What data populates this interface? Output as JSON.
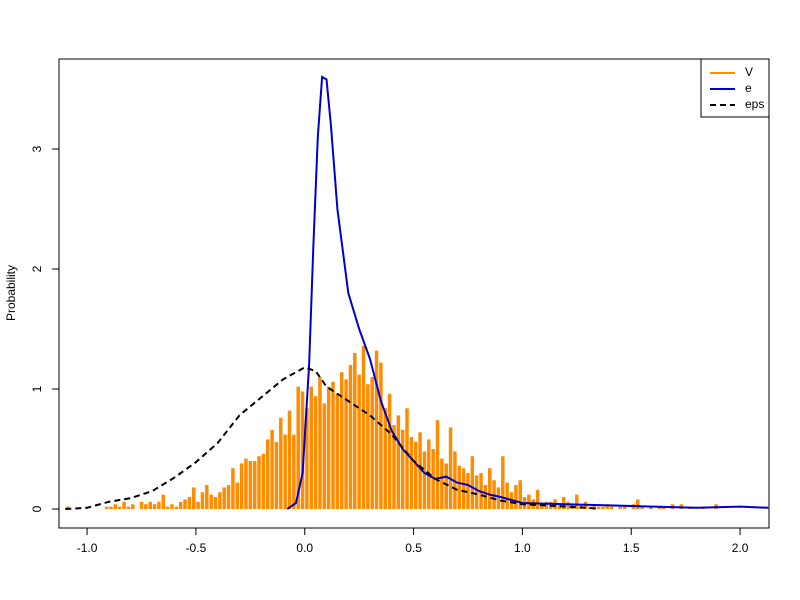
{
  "chart_data": {
    "type": "histogram",
    "ylabel": "Probability",
    "xlim": [
      -1.129,
      2.133
    ],
    "ylim": [
      -0.158,
      3.75
    ],
    "xticks": [
      {
        "value": -1.0,
        "label": "-1.0"
      },
      -0.5,
      {
        "value": 0,
        "label": "0.0"
      },
      0.5,
      {
        "value": 1.0,
        "label": "1.0"
      },
      1.5,
      {
        "value": 2.0,
        "label": "2.0"
      }
    ],
    "yticks": [
      0,
      1,
      2,
      3
    ],
    "legend": "topright",
    "series": [
      {
        "name": "V",
        "type": "histogram",
        "color": "#ff8c00",
        "bins": [
          -1.1,
          -1.08,
          -1.06,
          -1.04,
          -1.02,
          -1,
          -0.98,
          -0.96,
          -0.94,
          -0.92,
          -0.9,
          -0.88,
          -0.86,
          -0.84,
          -0.82,
          -0.8,
          -0.78,
          -0.76,
          -0.74,
          -0.72,
          -0.7,
          -0.68,
          -0.66,
          -0.64,
          -0.62,
          -0.6,
          -0.58,
          -0.56,
          -0.54,
          -0.52,
          -0.5,
          -0.48,
          -0.46,
          -0.44,
          -0.42,
          -0.4,
          -0.38,
          -0.36,
          -0.34,
          -0.32,
          -0.3,
          -0.28,
          -0.26,
          -0.24,
          -0.22,
          -0.2,
          -0.18,
          -0.16,
          -0.14,
          -0.12,
          -0.1,
          -0.08,
          -0.06,
          -0.04,
          -0.02,
          0,
          0.02,
          0.04,
          0.06,
          0.08,
          0.1,
          0.12,
          0.14,
          0.16,
          0.18,
          0.2,
          0.22,
          0.24,
          0.26,
          0.28,
          0.3,
          0.32,
          0.34,
          0.36,
          0.38,
          0.4,
          0.42,
          0.44,
          0.46,
          0.48,
          0.5,
          0.52,
          0.54,
          0.56,
          0.58,
          0.6,
          0.62,
          0.64,
          0.66,
          0.68,
          0.7,
          0.72,
          0.74,
          0.76,
          0.78,
          0.8,
          0.82,
          0.84,
          0.86,
          0.88,
          0.9,
          0.92,
          0.94,
          0.96,
          0.98,
          1,
          1.02,
          1.04,
          1.06,
          1.08,
          1.1,
          1.12,
          1.14,
          1.16,
          1.18,
          1.2,
          1.22,
          1.24,
          1.26,
          1.28,
          1.3,
          1.32,
          1.34,
          1.36,
          1.38,
          1.4,
          1.42,
          1.44,
          1.46,
          1.48,
          1.5,
          1.52,
          1.54,
          1.56,
          1.58,
          1.6,
          1.62,
          1.64,
          1.66,
          1.68,
          1.7,
          1.72,
          1.74,
          1.76,
          1.78,
          1.8,
          1.82,
          1.84,
          1.86,
          1.88,
          1.9,
          1.92
        ],
        "values": [
          0.02,
          0,
          0,
          0,
          0,
          0,
          0,
          0,
          0,
          0.02,
          0.02,
          0.04,
          0.02,
          0.06,
          0.02,
          0.04,
          0,
          0.06,
          0.04,
          0.06,
          0.04,
          0.06,
          0.12,
          0.02,
          0.04,
          0.02,
          0.06,
          0.08,
          0.1,
          0.18,
          0.06,
          0.14,
          0.2,
          0.12,
          0.1,
          0.14,
          0.18,
          0.2,
          0.34,
          0.22,
          0.38,
          0.42,
          0.4,
          0.4,
          0.44,
          0.46,
          0.58,
          0.66,
          0.56,
          0.76,
          0.62,
          0.82,
          0.62,
          1.02,
          0.98,
          0.84,
          1.02,
          0.94,
          1.1,
          0.88,
          1.02,
          1.06,
          0.96,
          1.14,
          1.08,
          1.2,
          1.3,
          1.12,
          1.36,
          1.04,
          1.1,
          1.32,
          1.22,
          0.84,
          0.96,
          0.7,
          0.78,
          0.66,
          0.84,
          0.6,
          0.56,
          0.64,
          0.48,
          0.58,
          0.5,
          0.74,
          0.42,
          0.38,
          0.68,
          0.48,
          0.36,
          0.34,
          0.3,
          0.44,
          0.28,
          0.3,
          0.2,
          0.34,
          0.24,
          0.18,
          0.44,
          0.22,
          0.14,
          0.2,
          0.24,
          0.1,
          0.12,
          0.08,
          0.16,
          0.04,
          0.06,
          0.06,
          0.08,
          0.04,
          0.1,
          0.06,
          0.04,
          0.12,
          0.04,
          0.06,
          0.02,
          0.04,
          0.02,
          0.02,
          0.04,
          0.02,
          0,
          0.02,
          0.02,
          0,
          0.04,
          0.08,
          0.02,
          0,
          0.02,
          0,
          0.02,
          0.02,
          0,
          0.04,
          0,
          0.04,
          0,
          0.02,
          0,
          0,
          0.02,
          0,
          0,
          0.04,
          0
        ]
      },
      {
        "name": "e",
        "type": "line",
        "color": "#0000cd",
        "dash": false,
        "x": [
          -0.08,
          -0.04,
          -0.01,
          0.02,
          0.04,
          0.06,
          0.08,
          0.1,
          0.12,
          0.15,
          0.2,
          0.25,
          0.3,
          0.35,
          0.4,
          0.45,
          0.5,
          0.55,
          0.6,
          0.65,
          0.7,
          0.75,
          0.8,
          0.85,
          0.9,
          1.0,
          1.2,
          1.4,
          1.6,
          1.8,
          2.0,
          2.13
        ],
        "values": [
          0,
          0.05,
          0.3,
          1.2,
          2.2,
          3.1,
          3.6,
          3.58,
          3.2,
          2.5,
          1.8,
          1.5,
          1.25,
          0.9,
          0.65,
          0.5,
          0.4,
          0.3,
          0.25,
          0.27,
          0.22,
          0.2,
          0.15,
          0.12,
          0.1,
          0.05,
          0.04,
          0.03,
          0.02,
          0.01,
          0.02,
          0.01
        ]
      },
      {
        "name": "eps",
        "type": "line",
        "color": "#000000",
        "dash": true,
        "x": [
          -1.1,
          -1.0,
          -0.9,
          -0.8,
          -0.7,
          -0.6,
          -0.5,
          -0.4,
          -0.3,
          -0.2,
          -0.1,
          0.0,
          0.05,
          0.1,
          0.2,
          0.3,
          0.4,
          0.5,
          0.6,
          0.7,
          0.8,
          0.9,
          1.0,
          1.1,
          1.2,
          1.3,
          1.35
        ],
        "values": [
          0,
          0.01,
          0.06,
          0.09,
          0.15,
          0.26,
          0.39,
          0.55,
          0.78,
          0.93,
          1.08,
          1.18,
          1.15,
          1.02,
          0.9,
          0.78,
          0.62,
          0.4,
          0.25,
          0.16,
          0.12,
          0.07,
          0.04,
          0.03,
          0.02,
          0.01,
          0
        ]
      }
    ]
  }
}
